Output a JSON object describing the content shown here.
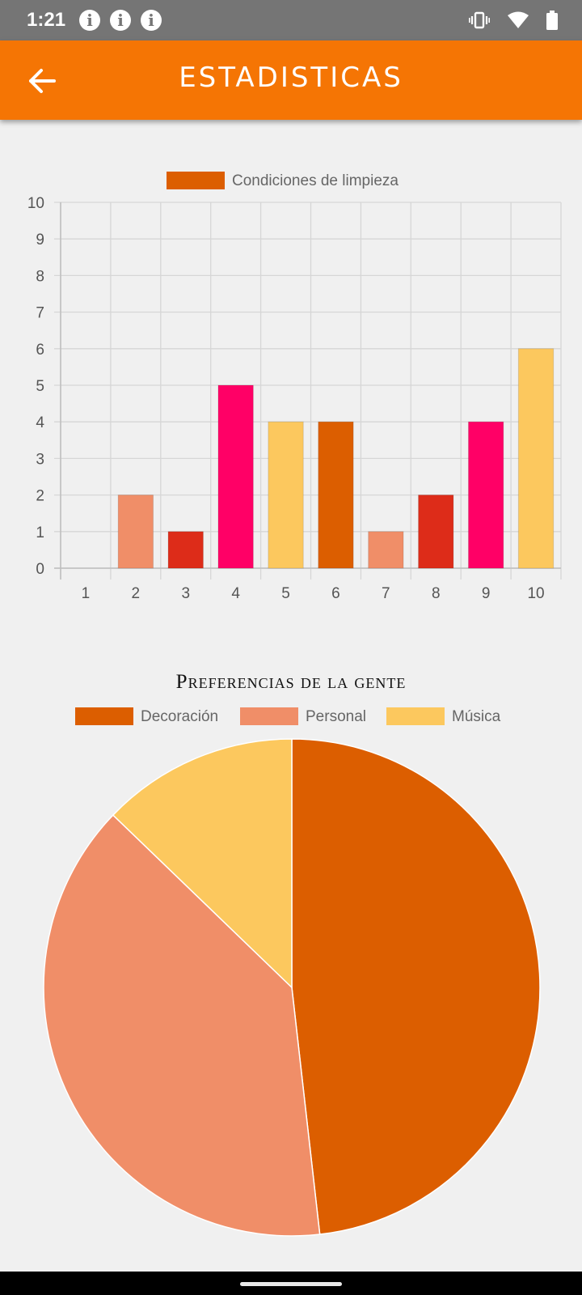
{
  "status_bar": {
    "time": "1:21",
    "info_icon_glyph": "i",
    "icons": [
      "info-icon",
      "info-icon",
      "info-icon",
      "vibrate-icon",
      "wifi-icon",
      "battery-icon"
    ]
  },
  "app_bar": {
    "title": "ESTADISTICAS",
    "back_icon": "arrow-left-icon",
    "background": "#f57504"
  },
  "chart_data": [
    {
      "type": "bar",
      "categories": [
        "1",
        "2",
        "3",
        "4",
        "5",
        "6",
        "7",
        "8",
        "9",
        "10"
      ],
      "series": [
        {
          "name": "Condiciones de limpieza",
          "values": [
            0,
            2,
            1,
            5,
            4,
            4,
            1,
            2,
            4,
            6
          ]
        }
      ],
      "bar_colors": [
        "#dc5e00",
        "#f08e68",
        "#dd2c19",
        "#ff0066",
        "#fcc85e",
        "#dc5e00",
        "#f08e68",
        "#dd2c19",
        "#ff0066",
        "#fcc85e"
      ],
      "legend_color": "#dc5e00",
      "y_ticks": [
        "0",
        "1",
        "2",
        "3",
        "4",
        "5",
        "6",
        "7",
        "8",
        "9",
        "10"
      ],
      "ylim": [
        0,
        10
      ],
      "grid": true,
      "legend_position": "top"
    },
    {
      "type": "pie",
      "title": "Preferencias de la gente",
      "labels": [
        "Decoración",
        "Personal",
        "Música"
      ],
      "values": [
        48.2,
        39.0,
        12.8
      ],
      "colors": [
        "#dc5e00",
        "#f08e68",
        "#fcc85e"
      ],
      "legend_position": "top"
    }
  ]
}
